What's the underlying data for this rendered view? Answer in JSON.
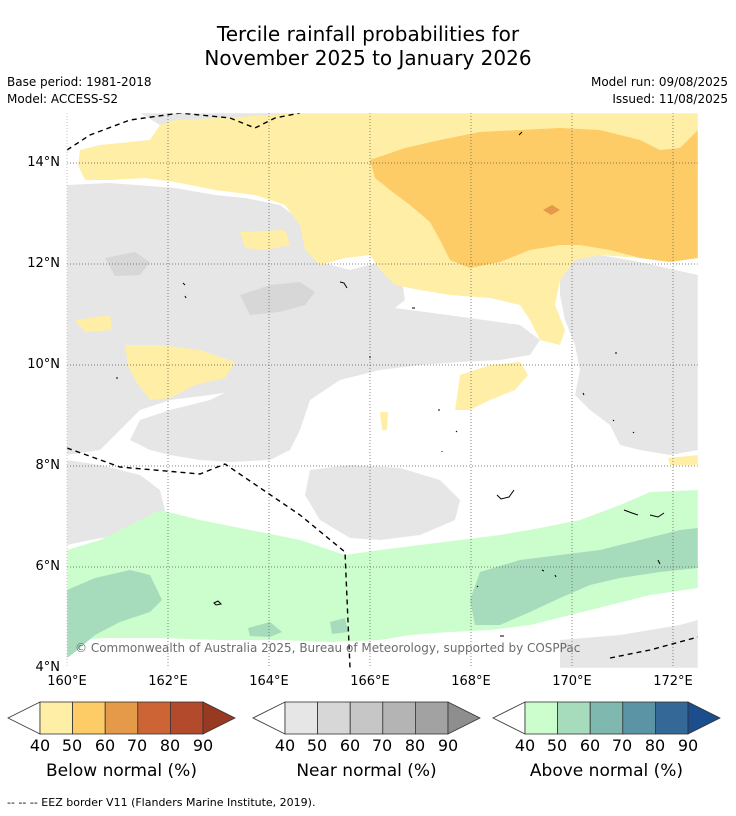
{
  "title_line1": "Tercile rainfall probabilities for",
  "title_line2": "November 2025 to January 2026",
  "base_period": "Base period: 1981-2018",
  "model": "Model: ACCESS-S2",
  "model_run": "Model run: 09/08/2025",
  "issued": "Issued: 11/08/2025",
  "copyright": "© Commonwealth of Australia 2025, Bureau of Meteorology, supported by COSPPac",
  "footer": "-- -- -- EEZ border V11 (Flanders Marine Institute, 2019).",
  "y_ticks": [
    "14°N",
    "12°N",
    "10°N",
    "8°N",
    "6°N",
    "4°N"
  ],
  "x_ticks": [
    "160°E",
    "162°E",
    "164°E",
    "166°E",
    "168°E",
    "170°E",
    "172°E"
  ],
  "colorbars": [
    {
      "title": "Below normal (%)",
      "labels": [
        "40",
        "50",
        "60",
        "70",
        "80",
        "90"
      ],
      "colors": [
        "#ffeea5",
        "#fdcc66",
        "#e49a48",
        "#cd6436",
        "#b34a2b",
        "#983a22"
      ]
    },
    {
      "title": "Near normal (%)",
      "labels": [
        "40",
        "50",
        "60",
        "70",
        "80",
        "90"
      ],
      "colors": [
        "#e6e6e6",
        "#d7d7d7",
        "#c6c6c6",
        "#b4b4b4",
        "#a2a2a2",
        "#8e8e8e"
      ]
    },
    {
      "title": "Above normal (%)",
      "labels": [
        "40",
        "50",
        "60",
        "70",
        "80",
        "90"
      ],
      "colors": [
        "#ccfdcc",
        "#a6dcbc",
        "#7fb8ae",
        "#5b95a5",
        "#336897",
        "#1c4d8c"
      ]
    }
  ],
  "map_colors": {
    "below_40": "#ffeea5",
    "below_50": "#fdcc66",
    "below_60": "#e49a48",
    "near_40": "#e6e6e6",
    "near_50": "#d7d7d7",
    "above_40": "#ccfdcc",
    "above_50": "#a6dcbc",
    "above_60": "#7fb8ae"
  }
}
